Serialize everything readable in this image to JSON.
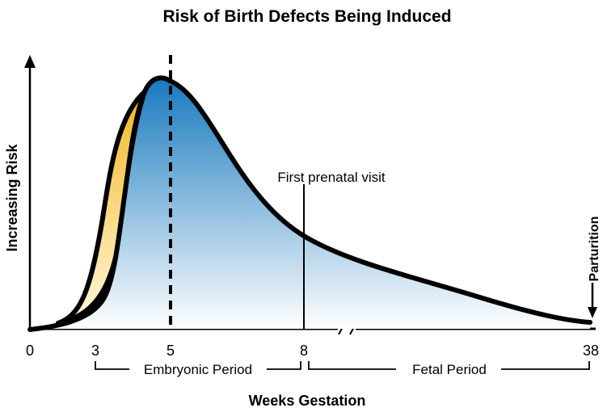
{
  "chart_data": {
    "type": "area",
    "title": "Risk of Birth Defects Being Induced",
    "xlabel": "Weeks Gestation",
    "ylabel": "Increasing Risk",
    "x_ticks": [
      0,
      3,
      5,
      8,
      38
    ],
    "axis_break": "between 8 and 38 weeks",
    "peak_week": 5,
    "series": [
      {
        "name": "risk curve",
        "x": [
          0,
          1.5,
          2.5,
          3.5,
          4.2,
          5,
          6,
          7,
          8,
          12,
          20,
          30,
          38
        ],
        "values": [
          0.0,
          0.03,
          0.3,
          0.8,
          0.98,
          1.0,
          0.78,
          0.56,
          0.38,
          0.26,
          0.15,
          0.06,
          0.02
        ]
      }
    ],
    "annotations": {
      "first_visit_label": "First prenatal visit",
      "first_visit_week": 8,
      "parturition_label": "Parturition",
      "parturition_week": 38
    },
    "periods": [
      {
        "label": "Embryonic Period",
        "from": 3,
        "to": 8
      },
      {
        "label": "Fetal Period",
        "from": 8,
        "to": 38
      }
    ],
    "colors": {
      "early_band_top": "#F2B41F",
      "early_band_bottom": "#FFF8D8",
      "main_fill_top": "#1879BE",
      "main_fill_bottom": "#FFFFFF",
      "outline": "#000000"
    }
  }
}
